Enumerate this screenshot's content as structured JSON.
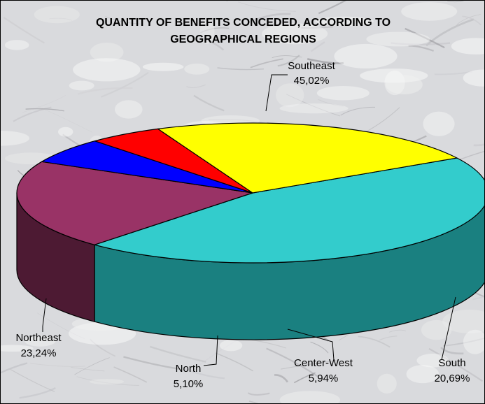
{
  "chart_data": {
    "type": "pie",
    "title_lines": [
      "QUANTITY OF BENEFITS CONCEDED, ACCORDING TO",
      "GEOGRAPHICAL REGIONS"
    ],
    "slices": [
      {
        "label": "Southeast",
        "value_text": "45,02%",
        "value": 45.02,
        "color": "#33CCCC",
        "side_color": "#1a8080"
      },
      {
        "label": "South",
        "value_text": "20,69%",
        "value": 20.69,
        "color": "#993366",
        "side_color": "#4d1a33"
      },
      {
        "label": "Center-West",
        "value_text": "5,94%",
        "value": 5.94,
        "color": "#0000FF",
        "side_color": "#000080"
      },
      {
        "label": "North",
        "value_text": "5,10%",
        "value": 5.1,
        "color": "#FF0000",
        "side_color": "#800000"
      },
      {
        "label": "Northeast",
        "value_text": "23,24%",
        "value": 23.24,
        "color": "#FFFF00",
        "side_color": "#808000"
      }
    ],
    "style": "3d-pie",
    "labels": "outside-with-leader-lines"
  }
}
